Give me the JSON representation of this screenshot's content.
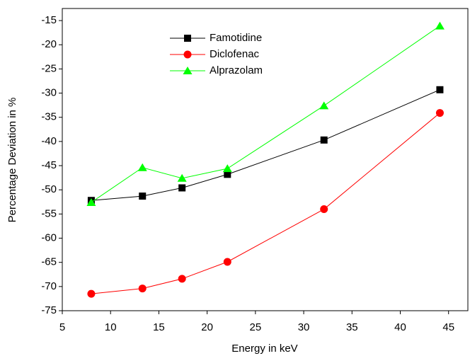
{
  "chart_data": {
    "type": "line",
    "x_label": "Energy in keV",
    "y_label": "Percentage Deviation in %",
    "x": [
      8.0,
      13.3,
      17.4,
      22.1,
      32.1,
      44.1
    ],
    "series": [
      {
        "name": "Famotidine",
        "color": "#000000",
        "marker": "square",
        "values": [
          -52.2,
          -51.3,
          -49.6,
          -46.8,
          -39.7,
          -29.3
        ]
      },
      {
        "name": "Diclofenac",
        "color": "#ff0000",
        "marker": "circle",
        "values": [
          -71.5,
          -70.4,
          -68.4,
          -64.9,
          -54.0,
          -34.1
        ]
      },
      {
        "name": "Alprazolam",
        "color": "#00ff00",
        "marker": "triangle",
        "values": [
          -52.6,
          -45.4,
          -47.6,
          -45.6,
          -32.6,
          -16.1
        ]
      }
    ],
    "xlim": [
      5,
      47
    ],
    "ylim": [
      -75,
      -12.5
    ],
    "xticks": [
      5,
      10,
      15,
      20,
      25,
      30,
      35,
      40,
      45
    ],
    "yticks": [
      -75,
      -70,
      -65,
      -60,
      -55,
      -50,
      -45,
      -40,
      -35,
      -30,
      -25,
      -20,
      -15
    ]
  }
}
